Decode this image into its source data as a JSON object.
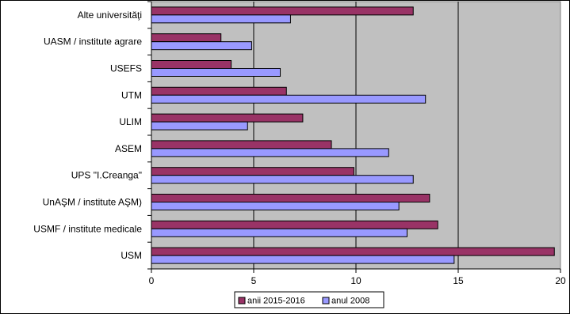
{
  "chart_data": {
    "type": "bar",
    "orientation": "horizontal",
    "categories": [
      "Alte universităţi",
      "UASM / institute agrare",
      "USEFS",
      "UTM",
      "ULIM",
      "ASEM",
      "UPS \"I.Creanga\"",
      "UnAŞM / institute AŞM)",
      "USMF / institute medicale",
      "USM"
    ],
    "series": [
      {
        "name": "anii 2015-2016",
        "color": "#993366",
        "values": [
          12.8,
          3.4,
          3.9,
          6.6,
          7.4,
          8.8,
          9.9,
          13.6,
          14.0,
          19.7
        ]
      },
      {
        "name": "anul 2008",
        "color": "#9999ff",
        "values": [
          6.8,
          4.9,
          6.3,
          13.4,
          4.7,
          11.6,
          12.8,
          12.1,
          12.5,
          14.8
        ]
      }
    ],
    "x_ticks": [
      "0",
      "5",
      "10",
      "15",
      "20"
    ],
    "xlim": [
      0,
      20
    ],
    "grid": "vertical",
    "legend_position": "bottom",
    "plot_background": "#c0c0c0",
    "title": "",
    "xlabel": "",
    "ylabel": ""
  }
}
